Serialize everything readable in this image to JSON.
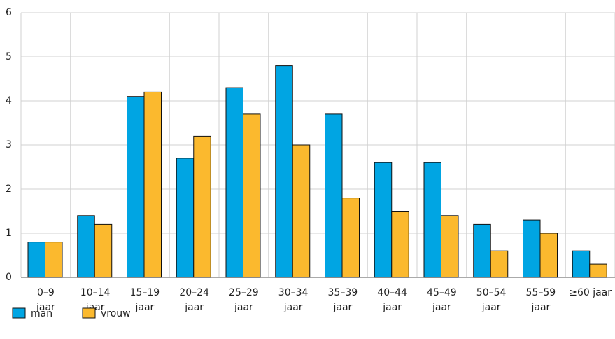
{
  "chart_data": {
    "type": "bar",
    "categories": [
      [
        "0–9",
        "jaar"
      ],
      [
        "10–14",
        "jaar"
      ],
      [
        "15–19",
        "jaar"
      ],
      [
        "20–24",
        "jaar"
      ],
      [
        "25–29",
        "jaar"
      ],
      [
        "30–34",
        "jaar"
      ],
      [
        "35–39",
        "jaar"
      ],
      [
        "40–44",
        "jaar"
      ],
      [
        "45–49",
        "jaar"
      ],
      [
        "50–54",
        "jaar"
      ],
      [
        "55–59",
        "jaar"
      ],
      [
        "≥60 jaar"
      ]
    ],
    "series": [
      {
        "name": "man",
        "color": "#00a5e3",
        "values": [
          0.8,
          1.4,
          4.1,
          2.7,
          4.3,
          4.8,
          3.7,
          2.6,
          2.6,
          1.2,
          1.3,
          0.6
        ]
      },
      {
        "name": "vrouw",
        "color": "#fbb92e",
        "values": [
          0.8,
          1.2,
          4.2,
          3.2,
          3.7,
          3.0,
          1.8,
          1.5,
          1.4,
          0.6,
          1.0,
          0.3
        ]
      }
    ],
    "ylim": [
      0,
      6
    ],
    "yticks": [
      0,
      1,
      2,
      3,
      4,
      5,
      6
    ],
    "grid": true,
    "legend": "bottom-left"
  }
}
